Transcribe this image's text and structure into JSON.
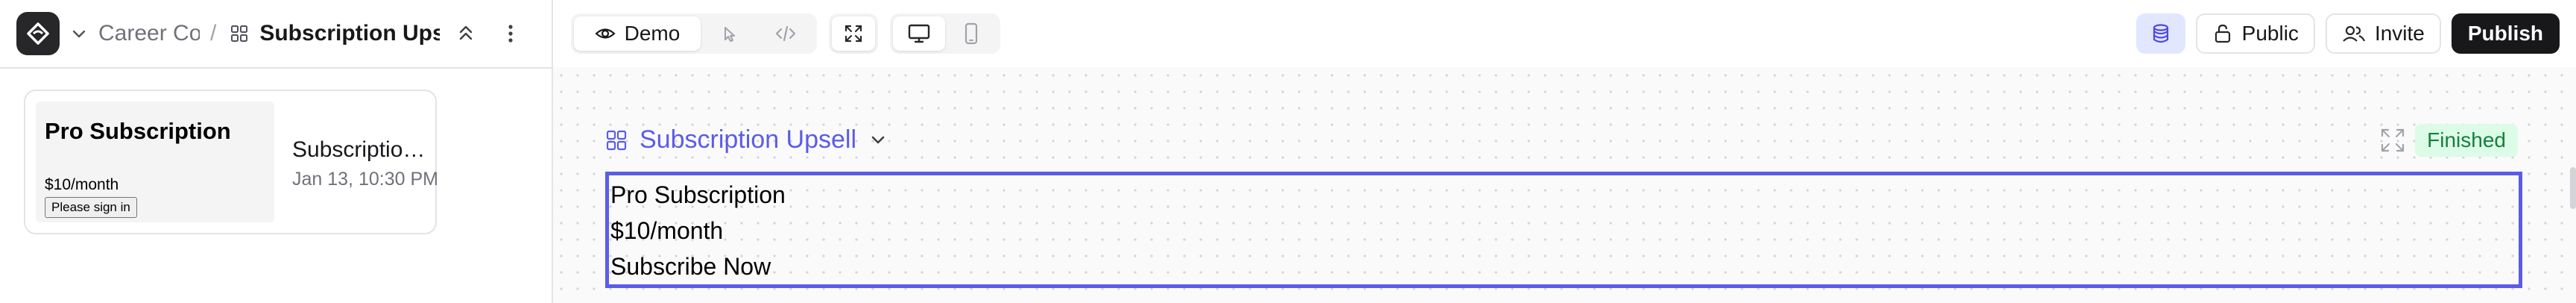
{
  "header": {
    "breadcrumb_project": "Career Co",
    "breadcrumb_separator": "/",
    "breadcrumb_page": "Subscription Upsell",
    "icons": {
      "logo": "app-logo-icon",
      "project_menu": "chevron-down-icon",
      "page_type": "grid-icon",
      "collapse": "collapse-icon",
      "more": "more-vertical-icon"
    }
  },
  "toolbar": {
    "demo_label": "Demo",
    "icons": [
      "eye-icon",
      "pointer-icon",
      "code-icon",
      "expand-icon",
      "desktop-icon",
      "mobile-icon"
    ],
    "active_device": "desktop"
  },
  "actions": {
    "public_label": "Public",
    "invite_label": "Invite",
    "publish_label": "Publish",
    "icons": [
      "database-icon",
      "lock-icon",
      "users-icon"
    ]
  },
  "sidebar": {
    "cards": [
      {
        "thumb_title": "Pro Subscription",
        "thumb_price": "$10/month",
        "thumb_button": "Please sign in",
        "title": "Subscription Upsell",
        "date": "Jan 13, 10:30 PM"
      }
    ]
  },
  "canvas": {
    "component_title": "Subscription Upsell",
    "status": "Finished",
    "preview_lines": [
      "Pro Subscription",
      "$10/month",
      "Subscribe Now"
    ]
  },
  "colors": {
    "accent": "#5b5ce8",
    "publish_bg": "#18181b",
    "status_bg": "#dcfce7",
    "status_text": "#15803d"
  }
}
